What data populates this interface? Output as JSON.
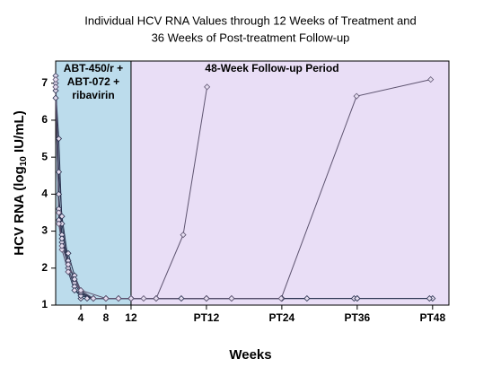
{
  "chart_data": {
    "type": "line",
    "title": [
      "Individual HCV RNA Values through 12 Weeks of Treatment and",
      "36 Weeks of Post-treatment Follow-up"
    ],
    "x_label": "Weeks",
    "y_label": [
      "HCV RNA (log",
      "10",
      " IU/mL)"
    ],
    "xlim": [
      0,
      62.6
    ],
    "ylim": [
      1,
      7.6
    ],
    "xticks": [
      4,
      8,
      12,
      {
        "value": 24,
        "label": "PT12"
      },
      {
        "value": 36,
        "label": "PT24"
      },
      {
        "value": 48,
        "label": "PT36"
      },
      {
        "value": 60,
        "label": "PT48"
      }
    ],
    "yticks": [
      1,
      2,
      3,
      4,
      5,
      6,
      7
    ],
    "regions": [
      {
        "label": [
          "ABT-450/r +",
          "ABT-072 +",
          "ribavirin"
        ],
        "start": 0,
        "end": 12,
        "color": "#bcdcec"
      },
      {
        "label": [
          "48-Week Follow-up Period"
        ],
        "start": 12,
        "end": 62.6,
        "color": "#e9def6"
      }
    ],
    "series": [
      {
        "color": "#2b3350",
        "x": [
          0,
          0.5,
          1,
          2,
          3,
          4,
          6,
          8,
          10,
          12,
          16,
          24
        ],
        "values": [
          7.0,
          4.6,
          3.4,
          2.2,
          1.6,
          1.3,
          1.18,
          1.18,
          1.18,
          1.18,
          1.18,
          1.18
        ]
      },
      {
        "color": "#2b3350",
        "x": [
          0,
          0.5,
          1,
          2,
          3,
          4,
          6,
          8,
          10,
          12,
          24,
          36
        ],
        "values": [
          6.8,
          5.5,
          3.2,
          2.0,
          1.5,
          1.18,
          1.18,
          1.18,
          1.18,
          1.18,
          1.18,
          1.18
        ]
      },
      {
        "color": "#2b3350",
        "x": [
          0,
          0.5,
          1,
          2,
          3,
          4,
          6,
          8,
          12,
          16,
          28,
          40
        ],
        "values": [
          7.2,
          4.0,
          2.9,
          1.9,
          1.4,
          1.25,
          1.18,
          1.18,
          1.18,
          1.18,
          1.18,
          1.18
        ]
      },
      {
        "color": "#2b3350",
        "x": [
          0,
          0.5,
          1,
          2,
          3,
          4,
          5,
          8,
          12,
          24,
          48,
          60
        ],
        "values": [
          6.6,
          3.6,
          2.7,
          2.4,
          1.8,
          1.4,
          1.18,
          1.18,
          1.18,
          1.18,
          1.18,
          1.18
        ]
      },
      {
        "color": "#2b3350",
        "x": [
          0,
          0.5,
          1,
          2,
          3,
          4,
          6,
          8,
          12,
          20,
          36,
          47.5,
          48,
          59.5
        ],
        "values": [
          6.9,
          3.3,
          2.8,
          2.1,
          1.7,
          1.35,
          1.18,
          1.18,
          1.18,
          1.18,
          1.18,
          1.18,
          1.18,
          1.18
        ]
      },
      {
        "color": "#5e5470",
        "x": [
          0,
          0.5,
          1,
          2,
          4,
          6,
          8,
          10,
          12,
          14,
          16,
          20.3,
          24.1
        ],
        "values": [
          6.9,
          3.5,
          2.5,
          1.9,
          1.4,
          1.18,
          1.18,
          1.18,
          1.18,
          1.18,
          1.18,
          2.9,
          6.9
        ]
      },
      {
        "color": "#5e5470",
        "x": [
          0,
          0.5,
          1,
          2,
          4,
          8,
          12,
          16,
          24,
          28,
          35.9,
          47.9,
          59.7
        ],
        "values": [
          7.1,
          3.2,
          2.6,
          2.1,
          1.4,
          1.18,
          1.18,
          1.18,
          1.18,
          1.18,
          1.18,
          6.65,
          7.1
        ]
      }
    ]
  }
}
